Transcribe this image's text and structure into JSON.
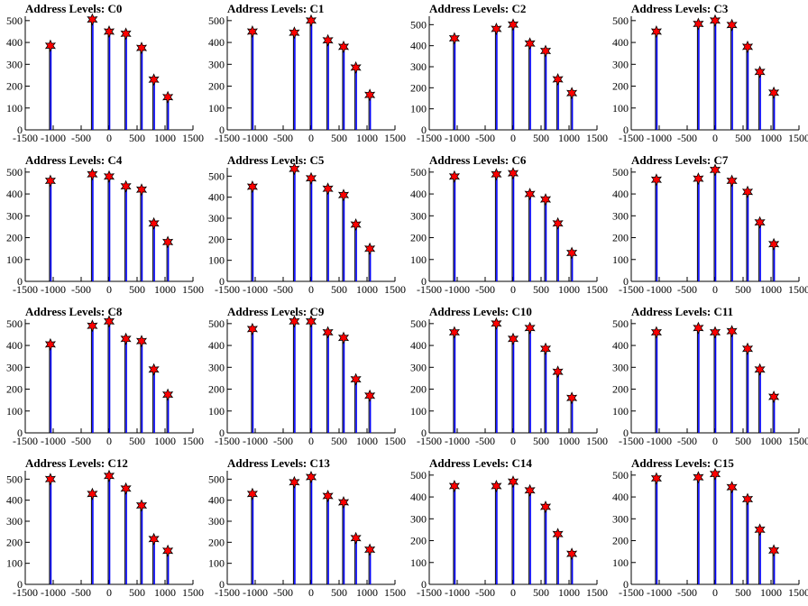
{
  "colors": {
    "bar": "#0000ff",
    "black_bar": "#000000",
    "marker": "#ff0000",
    "marker_edge": "#000000",
    "axis": "#000000"
  },
  "chart_data": [
    {
      "type": "bar",
      "title": "Address Levels: C0",
      "xlim": [
        -1500,
        1500
      ],
      "ylim": [
        0,
        520
      ],
      "x_ticks": [
        -1500,
        -1000,
        -500,
        0,
        500,
        1000,
        1500
      ],
      "y_ticks": [
        0,
        100,
        200,
        300,
        400,
        500
      ],
      "peaks": [
        {
          "x": -1050,
          "y": 385
        },
        {
          "x": -300,
          "y": 505
        },
        {
          "x": 0,
          "y": 450
        },
        {
          "x": 300,
          "y": 440
        },
        {
          "x": 580,
          "y": 375
        },
        {
          "x": 800,
          "y": 230
        },
        {
          "x": 1050,
          "y": 150
        }
      ]
    },
    {
      "type": "bar",
      "title": "Address Levels: C1",
      "xlim": [
        -1500,
        1500
      ],
      "ylim": [
        0,
        520
      ],
      "x_ticks": [
        -1500,
        -1000,
        -500,
        0,
        500,
        1000,
        1500
      ],
      "y_ticks": [
        0,
        100,
        200,
        300,
        400,
        500
      ],
      "peaks": [
        {
          "x": -1050,
          "y": 450
        },
        {
          "x": -300,
          "y": 445
        },
        {
          "x": 0,
          "y": 500
        },
        {
          "x": 300,
          "y": 410
        },
        {
          "x": 580,
          "y": 380
        },
        {
          "x": 800,
          "y": 285
        },
        {
          "x": 1050,
          "y": 160
        }
      ]
    },
    {
      "type": "bar",
      "title": "Address Levels: C2",
      "xlim": [
        -1500,
        1500
      ],
      "ylim": [
        0,
        540
      ],
      "x_ticks": [
        -1500,
        -1000,
        -500,
        0,
        500,
        1000,
        1500
      ],
      "y_ticks": [
        0,
        100,
        200,
        300,
        400,
        500
      ],
      "peaks": [
        {
          "x": -1050,
          "y": 435
        },
        {
          "x": -300,
          "y": 480
        },
        {
          "x": 0,
          "y": 500
        },
        {
          "x": 300,
          "y": 410
        },
        {
          "x": 580,
          "y": 375
        },
        {
          "x": 800,
          "y": 240
        },
        {
          "x": 1050,
          "y": 175
        }
      ]
    },
    {
      "type": "bar",
      "title": "Address Levels: C3",
      "xlim": [
        -1500,
        1500
      ],
      "ylim": [
        0,
        520
      ],
      "x_ticks": [
        -1500,
        -1000,
        -500,
        0,
        500,
        1000,
        1500
      ],
      "y_ticks": [
        0,
        100,
        200,
        300,
        400,
        500
      ],
      "peaks": [
        {
          "x": -1050,
          "y": 450
        },
        {
          "x": -300,
          "y": 485
        },
        {
          "x": 0,
          "y": 500
        },
        {
          "x": 300,
          "y": 480
        },
        {
          "x": 580,
          "y": 380
        },
        {
          "x": 800,
          "y": 265
        },
        {
          "x": 1050,
          "y": 170
        }
      ]
    },
    {
      "type": "bar",
      "title": "Address Levels: C4",
      "xlim": [
        -1500,
        1500
      ],
      "ylim": [
        0,
        520
      ],
      "x_ticks": [
        -1500,
        -1000,
        -500,
        0,
        500,
        1000,
        1500
      ],
      "y_ticks": [
        0,
        100,
        200,
        300,
        400,
        500
      ],
      "peaks": [
        {
          "x": -1050,
          "y": 460
        },
        {
          "x": -300,
          "y": 490
        },
        {
          "x": 0,
          "y": 480
        },
        {
          "x": 300,
          "y": 435
        },
        {
          "x": 580,
          "y": 420
        },
        {
          "x": 800,
          "y": 265
        },
        {
          "x": 1050,
          "y": 180
        }
      ]
    },
    {
      "type": "bar",
      "title": "Address Levels: C5",
      "xlim": [
        -1500,
        1500
      ],
      "ylim": [
        0,
        540
      ],
      "x_ticks": [
        -1500,
        -1000,
        -500,
        0,
        500,
        1000,
        1500
      ],
      "y_ticks": [
        0,
        100,
        200,
        300,
        400,
        500
      ],
      "peaks": [
        {
          "x": -1050,
          "y": 450
        },
        {
          "x": -300,
          "y": 535
        },
        {
          "x": 0,
          "y": 490
        },
        {
          "x": 300,
          "y": 440
        },
        {
          "x": 580,
          "y": 410
        },
        {
          "x": 800,
          "y": 270
        },
        {
          "x": 1050,
          "y": 155
        }
      ]
    },
    {
      "type": "bar",
      "title": "Address Levels: C6",
      "xlim": [
        -1500,
        1500
      ],
      "ylim": [
        0,
        520
      ],
      "x_ticks": [
        -1500,
        -1000,
        -500,
        0,
        500,
        1000,
        1500
      ],
      "y_ticks": [
        0,
        100,
        200,
        300,
        400,
        500
      ],
      "peaks": [
        {
          "x": -1050,
          "y": 480
        },
        {
          "x": -300,
          "y": 490
        },
        {
          "x": 0,
          "y": 495
        },
        {
          "x": 300,
          "y": 400
        },
        {
          "x": 580,
          "y": 375
        },
        {
          "x": 800,
          "y": 265
        },
        {
          "x": 1050,
          "y": 130
        }
      ]
    },
    {
      "type": "bar",
      "title": "Address Levels: C7",
      "xlim": [
        -1500,
        1500
      ],
      "ylim": [
        0,
        520
      ],
      "x_ticks": [
        -1500,
        -1000,
        -500,
        0,
        500,
        1000,
        1500
      ],
      "y_ticks": [
        0,
        100,
        200,
        300,
        400,
        500
      ],
      "peaks": [
        {
          "x": -1050,
          "y": 465
        },
        {
          "x": -300,
          "y": 470
        },
        {
          "x": 0,
          "y": 510
        },
        {
          "x": 300,
          "y": 460
        },
        {
          "x": 580,
          "y": 410
        },
        {
          "x": 800,
          "y": 270
        },
        {
          "x": 1050,
          "y": 170
        }
      ]
    },
    {
      "type": "bar",
      "title": "Address Levels: C8",
      "xlim": [
        -1500,
        1500
      ],
      "ylim": [
        0,
        520
      ],
      "x_ticks": [
        -1500,
        -1000,
        -500,
        0,
        500,
        1000,
        1500
      ],
      "y_ticks": [
        0,
        100,
        200,
        300,
        400,
        500
      ],
      "peaks": [
        {
          "x": -1050,
          "y": 405
        },
        {
          "x": -300,
          "y": 490
        },
        {
          "x": 0,
          "y": 510
        },
        {
          "x": 300,
          "y": 430
        },
        {
          "x": 580,
          "y": 420
        },
        {
          "x": 800,
          "y": 290
        },
        {
          "x": 1050,
          "y": 175
        }
      ]
    },
    {
      "type": "bar",
      "title": "Address Levels: C9",
      "xlim": [
        -1500,
        1500
      ],
      "ylim": [
        0,
        520
      ],
      "x_ticks": [
        -1500,
        -1000,
        -500,
        0,
        500,
        1000,
        1500
      ],
      "y_ticks": [
        0,
        100,
        200,
        300,
        400,
        500
      ],
      "peaks": [
        {
          "x": -1050,
          "y": 475
        },
        {
          "x": -300,
          "y": 510
        },
        {
          "x": 0,
          "y": 510
        },
        {
          "x": 300,
          "y": 460
        },
        {
          "x": 580,
          "y": 435
        },
        {
          "x": 800,
          "y": 245
        },
        {
          "x": 1050,
          "y": 170
        }
      ]
    },
    {
      "type": "bar",
      "title": "Address Levels: C10",
      "xlim": [
        -1500,
        1500
      ],
      "ylim": [
        0,
        520
      ],
      "x_ticks": [
        -1500,
        -1000,
        -500,
        0,
        500,
        1000,
        1500
      ],
      "y_ticks": [
        0,
        100,
        200,
        300,
        400,
        500
      ],
      "peaks": [
        {
          "x": -1050,
          "y": 460
        },
        {
          "x": -300,
          "y": 500
        },
        {
          "x": 0,
          "y": 430
        },
        {
          "x": 300,
          "y": 480
        },
        {
          "x": 580,
          "y": 385
        },
        {
          "x": 800,
          "y": 280
        },
        {
          "x": 1050,
          "y": 160
        }
      ]
    },
    {
      "type": "bar",
      "title": "Address Levels: C11",
      "xlim": [
        -1500,
        1500
      ],
      "ylim": [
        0,
        520
      ],
      "x_ticks": [
        -1500,
        -1000,
        -500,
        0,
        500,
        1000,
        1500
      ],
      "y_ticks": [
        0,
        100,
        200,
        300,
        400,
        500
      ],
      "peaks": [
        {
          "x": -1050,
          "y": 460
        },
        {
          "x": -300,
          "y": 480
        },
        {
          "x": 0,
          "y": 460
        },
        {
          "x": 300,
          "y": 465
        },
        {
          "x": 580,
          "y": 385
        },
        {
          "x": 800,
          "y": 290
        },
        {
          "x": 1050,
          "y": 165
        }
      ]
    },
    {
      "type": "bar",
      "title": "Address Levels: C12",
      "xlim": [
        -1500,
        1500
      ],
      "ylim": [
        0,
        540
      ],
      "x_ticks": [
        -1500,
        -1000,
        -500,
        0,
        500,
        1000,
        1500
      ],
      "y_ticks": [
        0,
        100,
        200,
        300,
        400,
        500
      ],
      "peaks": [
        {
          "x": -1050,
          "y": 500
        },
        {
          "x": -300,
          "y": 430
        },
        {
          "x": 0,
          "y": 515
        },
        {
          "x": 300,
          "y": 455
        },
        {
          "x": 580,
          "y": 375
        },
        {
          "x": 800,
          "y": 215
        },
        {
          "x": 1050,
          "y": 160
        }
      ]
    },
    {
      "type": "bar",
      "title": "Address Levels: C13",
      "xlim": [
        -1500,
        1500
      ],
      "ylim": [
        0,
        540
      ],
      "x_ticks": [
        -1500,
        -1000,
        -500,
        0,
        500,
        1000,
        1500
      ],
      "y_ticks": [
        0,
        100,
        200,
        300,
        400,
        500
      ],
      "peaks": [
        {
          "x": -1050,
          "y": 430
        },
        {
          "x": -300,
          "y": 485
        },
        {
          "x": 0,
          "y": 510
        },
        {
          "x": 300,
          "y": 420
        },
        {
          "x": 580,
          "y": 390
        },
        {
          "x": 800,
          "y": 220
        },
        {
          "x": 1050,
          "y": 165
        }
      ]
    },
    {
      "type": "bar",
      "title": "Address Levels: C14",
      "xlim": [
        -1500,
        1500
      ],
      "ylim": [
        0,
        520
      ],
      "x_ticks": [
        -1500,
        -1000,
        -500,
        0,
        500,
        1000,
        1500
      ],
      "y_ticks": [
        0,
        100,
        200,
        300,
        400,
        500
      ],
      "peaks": [
        {
          "x": -1050,
          "y": 450
        },
        {
          "x": -300,
          "y": 450
        },
        {
          "x": 0,
          "y": 470
        },
        {
          "x": 300,
          "y": 430
        },
        {
          "x": 580,
          "y": 355
        },
        {
          "x": 800,
          "y": 230
        },
        {
          "x": 1050,
          "y": 140
        }
      ]
    },
    {
      "type": "bar",
      "title": "Address Levels: C15",
      "xlim": [
        -1500,
        1500
      ],
      "ylim": [
        0,
        520
      ],
      "x_ticks": [
        -1500,
        -1000,
        -500,
        0,
        500,
        1000,
        1500
      ],
      "y_ticks": [
        0,
        100,
        200,
        300,
        400,
        500
      ],
      "peaks": [
        {
          "x": -1050,
          "y": 485
        },
        {
          "x": -300,
          "y": 490
        },
        {
          "x": 0,
          "y": 505
        },
        {
          "x": 300,
          "y": 445
        },
        {
          "x": 580,
          "y": 390
        },
        {
          "x": 800,
          "y": 250
        },
        {
          "x": 1050,
          "y": 155
        }
      ]
    }
  ]
}
